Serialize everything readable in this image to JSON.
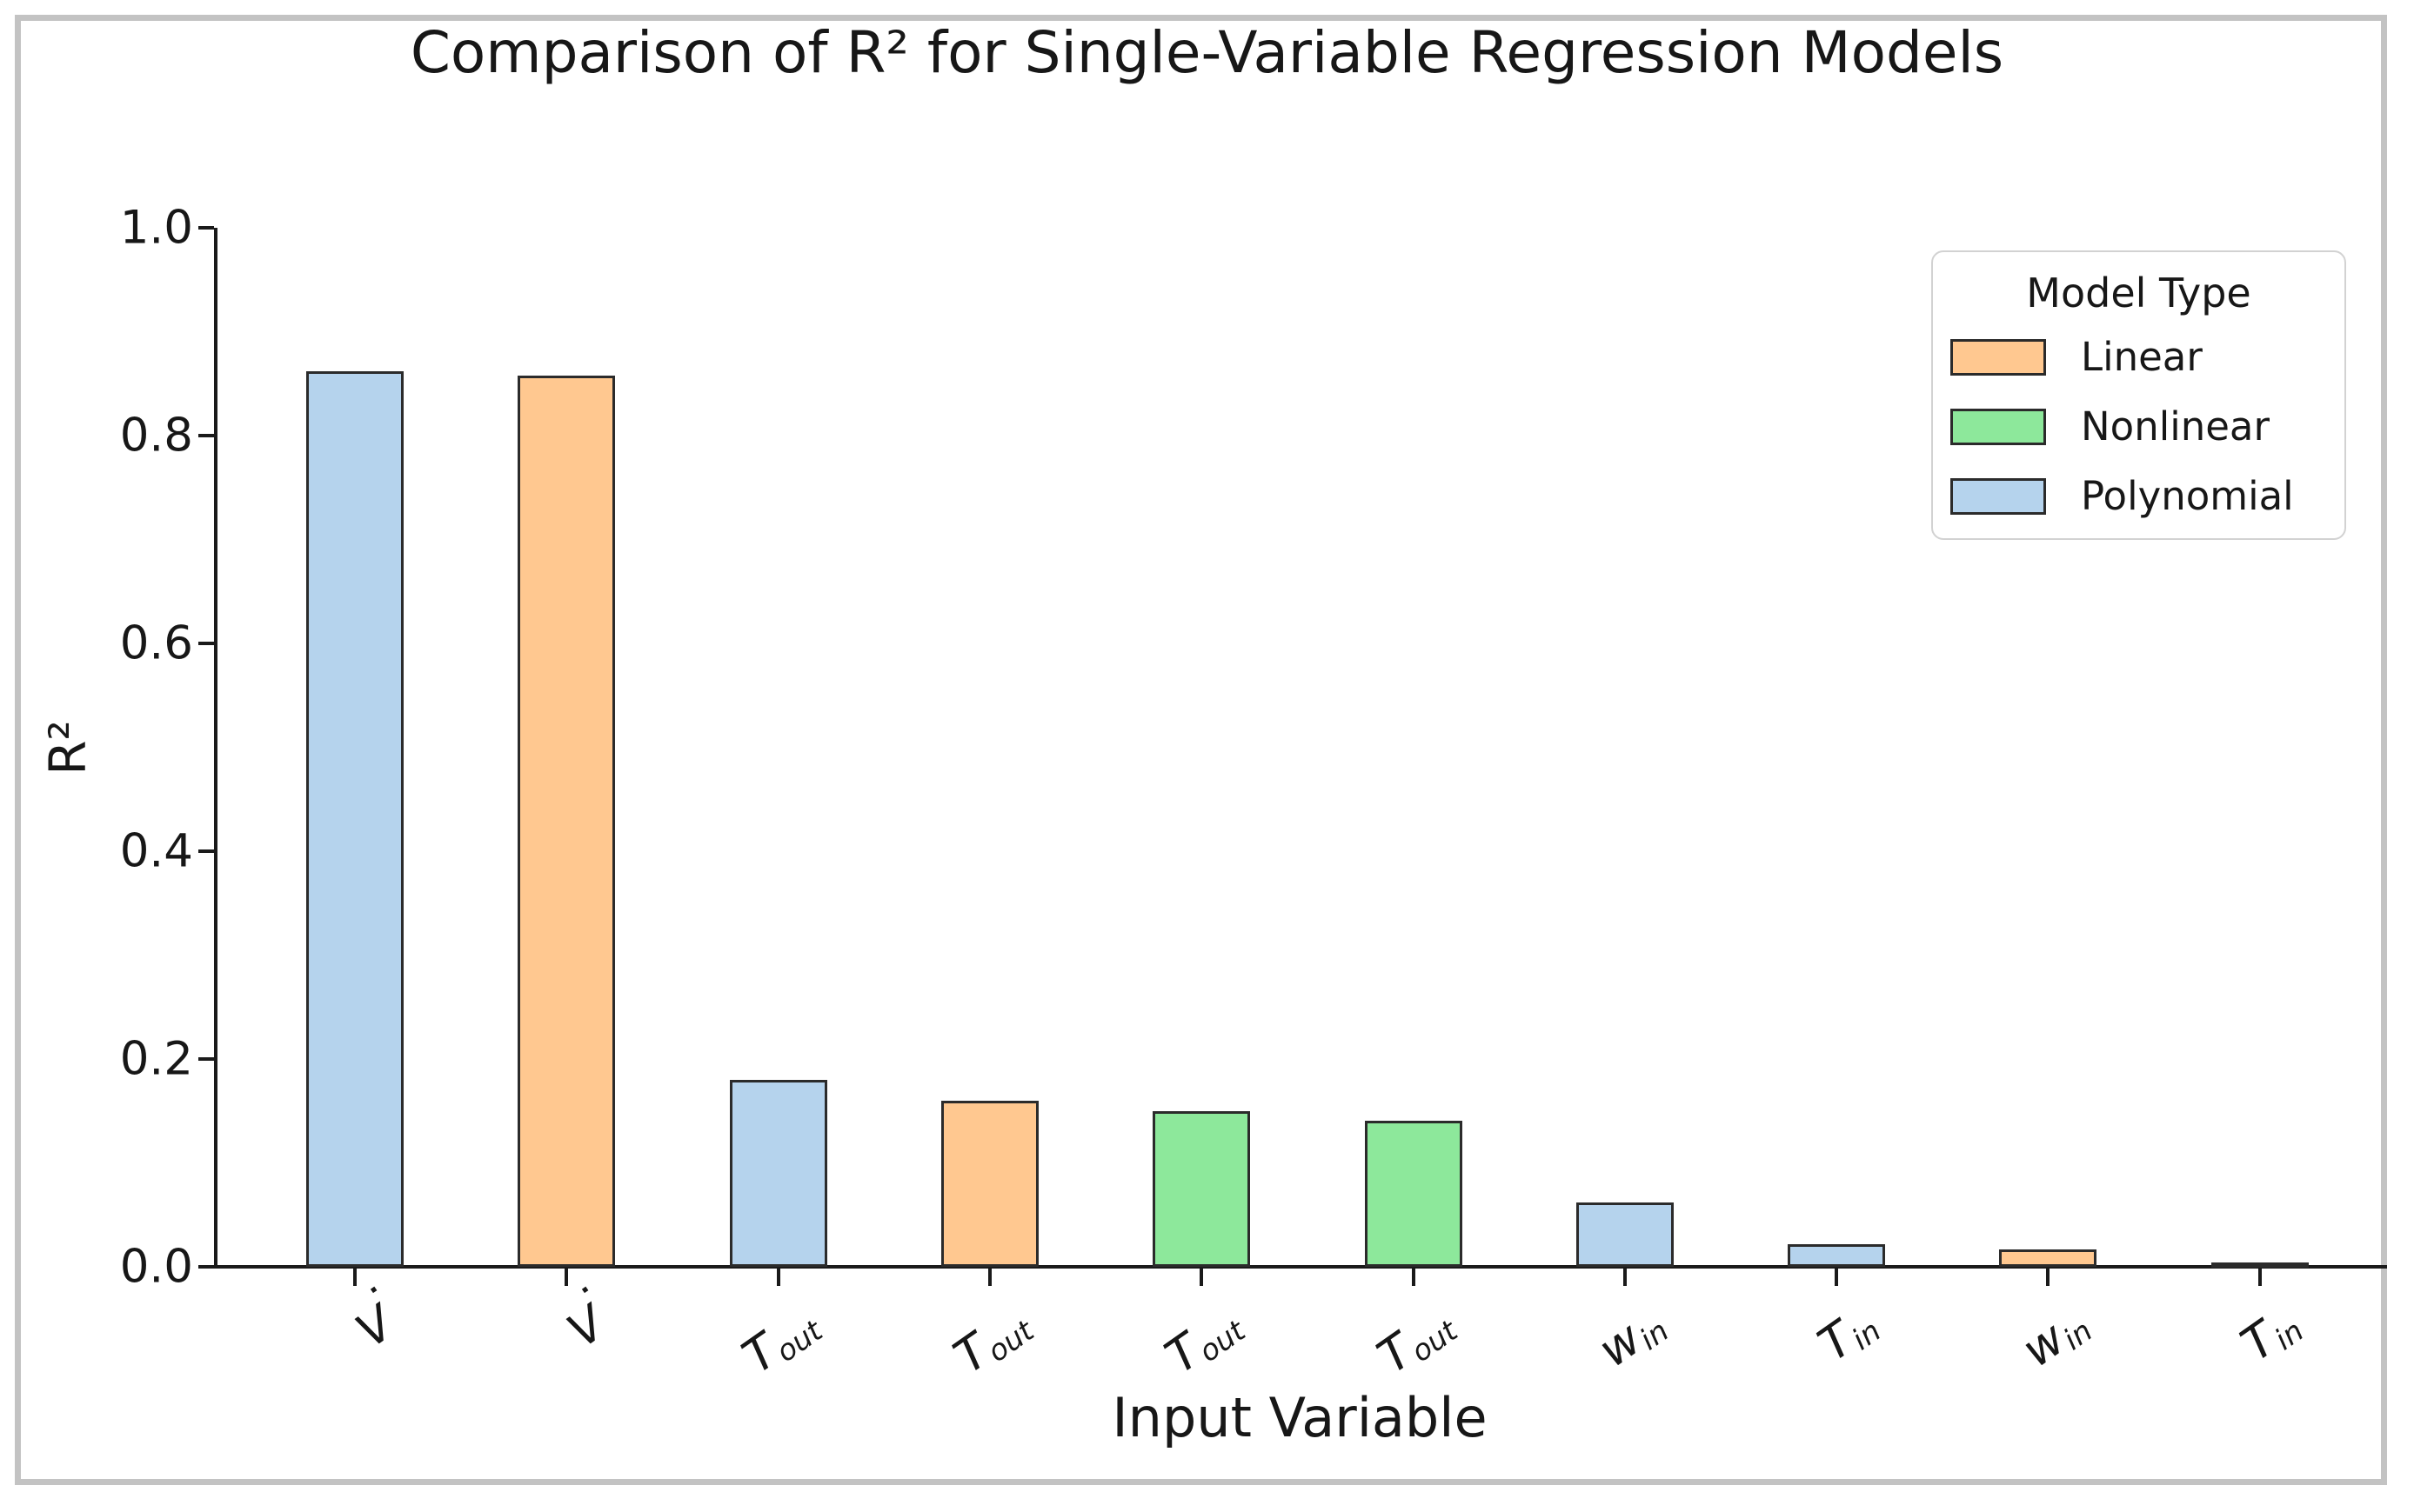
{
  "chart_data": {
    "type": "bar",
    "title": "Comparison of R² for Single-Variable Regression Models",
    "xlabel": "Input Variable",
    "ylabel": "R²",
    "ylim": [
      0.0,
      1.0
    ],
    "yticks": [
      "0.0",
      "0.2",
      "0.4",
      "0.6",
      "0.8",
      "1.0"
    ],
    "grid": false,
    "colors": {
      "axis": "#1a1a1a",
      "bar_edge": "#2b2b2b",
      "frame_border": "#c3c3c3",
      "legend_border": "#d2d2d2"
    },
    "legend": {
      "title": "Model Type",
      "position": "upper right",
      "entries": [
        {
          "label": "Linear",
          "color": "#FFC890"
        },
        {
          "label": "Nonlinear",
          "color": "#8DE89B"
        },
        {
          "label": "Polynomial",
          "color": "#B5D3ED"
        }
      ]
    },
    "categories": [
      "V̇",
      "V̇",
      "T_out",
      "T_out",
      "T_out",
      "T_out",
      "w_in",
      "T_in",
      "w_in",
      "T_in"
    ],
    "bars": [
      {
        "variable": "V̇",
        "base": "V",
        "dot": true,
        "sub": "",
        "model": "Polynomial",
        "value": 0.862
      },
      {
        "variable": "V̇",
        "base": "V",
        "dot": true,
        "sub": "",
        "model": "Linear",
        "value": 0.858
      },
      {
        "variable": "T_out",
        "base": "T",
        "dot": false,
        "sub": "out",
        "model": "Polynomial",
        "value": 0.18
      },
      {
        "variable": "T_out",
        "base": "T",
        "dot": false,
        "sub": "out",
        "model": "Linear",
        "value": 0.16
      },
      {
        "variable": "T_out",
        "base": "T",
        "dot": false,
        "sub": "out",
        "model": "Nonlinear",
        "value": 0.15
      },
      {
        "variable": "T_out",
        "base": "T",
        "dot": false,
        "sub": "out",
        "model": "Nonlinear",
        "value": 0.141
      },
      {
        "variable": "w_in",
        "base": "w",
        "dot": false,
        "sub": "in",
        "model": "Polynomial",
        "value": 0.062
      },
      {
        "variable": "T_in",
        "base": "T",
        "dot": false,
        "sub": "in",
        "model": "Polynomial",
        "value": 0.022
      },
      {
        "variable": "w_in",
        "base": "w",
        "dot": false,
        "sub": "in",
        "model": "Linear",
        "value": 0.017
      },
      {
        "variable": "T_in",
        "base": "T",
        "dot": false,
        "sub": "in",
        "model": "Linear",
        "value": 0.004
      }
    ]
  }
}
